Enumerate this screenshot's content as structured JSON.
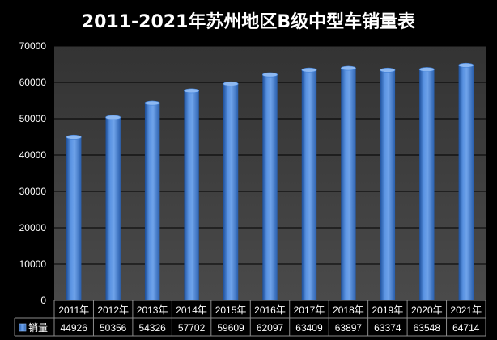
{
  "chart_data": {
    "type": "bar",
    "title": "2011-2021年苏州地区B级中型车销量表",
    "categories": [
      "2011年",
      "2012年",
      "2013年",
      "2014年",
      "2015年",
      "2016年",
      "2017年",
      "2018年",
      "2019年",
      "2020年",
      "2021年"
    ],
    "series": [
      {
        "name": "销量",
        "values": [
          44926,
          50356,
          54326,
          57702,
          59609,
          62097,
          63409,
          63897,
          63374,
          63548,
          64714
        ],
        "value_labels": [
          "44926",
          "50356",
          "54326",
          "57702",
          "59609",
          "62097",
          "63409",
          "63897",
          "63374",
          "63548",
          "64714"
        ]
      }
    ],
    "ylim": [
      0,
      70000
    ],
    "yticks": [
      0,
      10000,
      20000,
      30000,
      40000,
      50000,
      60000,
      70000
    ],
    "ytick_labels": [
      "0",
      "10000",
      "20000",
      "30000",
      "40000",
      "50000",
      "60000",
      "70000"
    ],
    "grid": true,
    "data_table": true,
    "colors": {
      "background": "#000000",
      "plot_area": "#3a3a3a",
      "gridline": "#000000",
      "bar_light": "#6fa3ea",
      "bar_mid": "#3f7fd6",
      "bar_dark": "#1d4f9a",
      "text": "#ffffff",
      "table_border": "#8a8a8a"
    }
  }
}
